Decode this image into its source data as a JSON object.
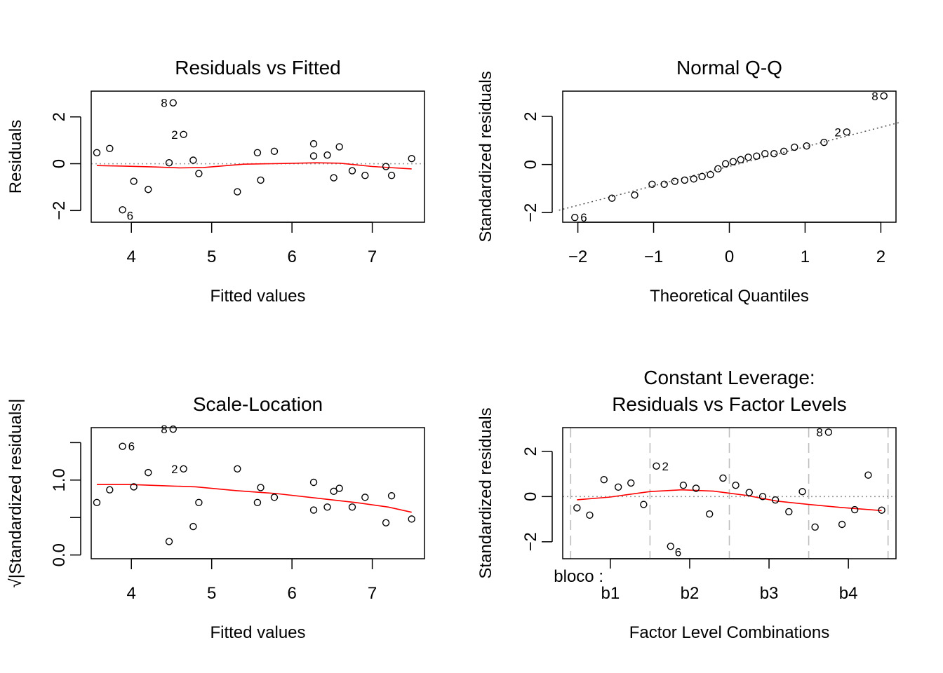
{
  "chart_data": [
    {
      "type": "scatter",
      "title": "Residuals vs Fitted",
      "xlabel": "Fitted values",
      "ylabel": "Residuals",
      "xlim": [
        3.5,
        7.65
      ],
      "ylim": [
        -2.5,
        3.1
      ],
      "xticks": [
        4,
        5,
        6,
        7
      ],
      "yticks": [
        -2,
        0,
        2
      ],
      "reference_line": 0,
      "points": {
        "x": [
          3.57,
          3.73,
          3.89,
          4.03,
          4.21,
          4.47,
          4.52,
          4.65,
          4.77,
          4.84,
          5.32,
          5.57,
          5.61,
          5.78,
          6.27,
          6.27,
          6.44,
          6.52,
          6.59,
          6.75,
          6.91,
          7.17,
          7.24,
          7.49
        ],
        "y": [
          0.47,
          0.65,
          -1.97,
          -0.75,
          -1.1,
          0.04,
          2.6,
          1.25,
          0.15,
          -0.42,
          -1.2,
          0.47,
          -0.7,
          0.53,
          0.33,
          0.85,
          0.37,
          -0.6,
          0.72,
          -0.3,
          -0.5,
          -0.12,
          -0.5,
          0.22
        ]
      },
      "point_labels": [
        {
          "text": "8",
          "x": 4.52,
          "y": 2.6,
          "side": "left"
        },
        {
          "text": "2",
          "x": 4.65,
          "y": 1.25,
          "side": "left"
        },
        {
          "text": "6",
          "x": 3.89,
          "y": -1.97,
          "side": "below-right"
        }
      ],
      "smooth": {
        "x": [
          3.57,
          3.9,
          4.3,
          4.6,
          4.9,
          5.4,
          5.9,
          6.3,
          6.6,
          7.0,
          7.49
        ],
        "y": [
          -0.08,
          -0.1,
          -0.14,
          -0.18,
          -0.16,
          -0.02,
          0.01,
          0.04,
          0.02,
          -0.12,
          -0.22
        ]
      }
    },
    {
      "type": "scatter",
      "title": "Normal Q-Q",
      "xlabel": "Theoretical Quantiles",
      "ylabel": "Standardized residuals",
      "xlim": [
        -2.2,
        2.2
      ],
      "ylim": [
        -2.4,
        3.05
      ],
      "xticks": [
        -2,
        -1,
        0,
        1,
        2
      ],
      "yticks": [
        -2,
        0,
        2
      ],
      "points": {
        "x": [
          -2.04,
          -1.55,
          -1.25,
          -1.02,
          -0.86,
          -0.72,
          -0.59,
          -0.47,
          -0.36,
          -0.25,
          -0.15,
          -0.05,
          0.05,
          0.15,
          0.25,
          0.36,
          0.47,
          0.59,
          0.72,
          0.86,
          1.02,
          1.25,
          1.55,
          2.04
        ],
        "y": [
          -2.2,
          -1.4,
          -1.27,
          -0.82,
          -0.82,
          -0.7,
          -0.65,
          -0.6,
          -0.5,
          -0.42,
          -0.18,
          0.03,
          0.12,
          0.2,
          0.3,
          0.35,
          0.45,
          0.45,
          0.55,
          0.72,
          0.77,
          0.92,
          1.35,
          2.85
        ]
      },
      "point_labels": [
        {
          "text": "8",
          "x": 2.04,
          "y": 2.85,
          "side": "left"
        },
        {
          "text": "2",
          "x": 1.55,
          "y": 1.35,
          "side": "left"
        },
        {
          "text": "6",
          "x": -2.04,
          "y": -2.2,
          "side": "right"
        }
      ],
      "qq_line": {
        "x": [
          -2.25,
          2.25
        ],
        "y": [
          -1.9,
          1.75
        ]
      }
    },
    {
      "type": "scatter",
      "title": "Scale-Location",
      "xlabel": "Fitted values",
      "ylabel": "Standardized residuals",
      "ylabel_prefix": "√|",
      "ylabel_suffix": "|",
      "xlim": [
        3.5,
        7.65
      ],
      "ylim": [
        -0.05,
        1.7
      ],
      "xticks": [
        4,
        5,
        6,
        7
      ],
      "yticks": [
        0.0,
        1.0
      ],
      "ytick_labels": [
        "0.0",
        "1.0"
      ],
      "yticks_minor": [
        0.5,
        1.5
      ],
      "points": {
        "x": [
          3.57,
          3.73,
          3.89,
          4.03,
          4.21,
          4.47,
          4.52,
          4.65,
          4.77,
          4.84,
          5.32,
          5.57,
          5.61,
          5.78,
          6.27,
          6.27,
          6.44,
          6.52,
          6.59,
          6.75,
          6.91,
          7.17,
          7.24,
          7.49
        ],
        "y": [
          0.7,
          0.87,
          1.45,
          0.91,
          1.1,
          0.18,
          1.68,
          1.15,
          0.38,
          0.7,
          1.15,
          0.7,
          0.9,
          0.77,
          0.6,
          0.97,
          0.64,
          0.85,
          0.89,
          0.64,
          0.77,
          0.43,
          0.79,
          0.48
        ]
      },
      "point_labels": [
        {
          "text": "8",
          "x": 4.52,
          "y": 1.68,
          "side": "left"
        },
        {
          "text": "2",
          "x": 4.65,
          "y": 1.15,
          "side": "left"
        },
        {
          "text": "6",
          "x": 3.89,
          "y": 1.45,
          "side": "right"
        }
      ],
      "smooth": {
        "x": [
          3.57,
          4.0,
          4.5,
          4.8,
          5.3,
          5.8,
          6.3,
          6.8,
          7.2,
          7.49
        ],
        "y": [
          0.94,
          0.94,
          0.92,
          0.91,
          0.86,
          0.82,
          0.76,
          0.7,
          0.64,
          0.57
        ]
      }
    },
    {
      "type": "scatter",
      "title": "Constant Leverage:",
      "subtitle": "Residuals vs Factor Levels",
      "xlabel": "Factor Level Combinations",
      "ylabel": "Standardized residuals",
      "factor_name": "bloco :",
      "xlim": [
        0.4,
        4.6
      ],
      "ylim": [
        -2.75,
        3.05
      ],
      "categories": [
        "b1",
        "b2",
        "b3",
        "b4"
      ],
      "category_positions": [
        1.0,
        2.0,
        3.0,
        4.0
      ],
      "group_boundaries": [
        0.5,
        1.5,
        2.5,
        3.5,
        4.5
      ],
      "yticks": [
        -2,
        0,
        2
      ],
      "reference_line": 0,
      "points": {
        "x": [
          0.58,
          0.74,
          0.92,
          1.1,
          1.26,
          1.42,
          1.58,
          1.76,
          1.92,
          2.08,
          2.25,
          2.42,
          2.58,
          2.75,
          2.92,
          3.08,
          3.25,
          3.42,
          3.58,
          3.75,
          3.92,
          4.08,
          4.25,
          4.42
        ],
        "y": [
          -0.5,
          -0.82,
          0.75,
          0.42,
          0.6,
          -0.35,
          1.35,
          -2.2,
          0.5,
          0.37,
          -0.77,
          0.82,
          0.5,
          0.18,
          0.0,
          -0.15,
          -0.67,
          0.22,
          -1.35,
          2.85,
          -1.23,
          -0.58,
          0.95,
          -0.6
        ]
      },
      "point_labels": [
        {
          "text": "8",
          "x": 3.75,
          "y": 2.85,
          "side": "left"
        },
        {
          "text": "2",
          "x": 1.58,
          "y": 1.35,
          "side": "right"
        },
        {
          "text": "6",
          "x": 1.76,
          "y": -2.2,
          "side": "below-right"
        }
      ],
      "smooth": {
        "x": [
          0.58,
          1.0,
          1.5,
          1.9,
          2.3,
          2.7,
          3.1,
          3.5,
          3.9,
          4.42
        ],
        "y": [
          -0.14,
          -0.02,
          0.22,
          0.3,
          0.24,
          0.06,
          -0.2,
          -0.35,
          -0.48,
          -0.62
        ]
      }
    }
  ]
}
